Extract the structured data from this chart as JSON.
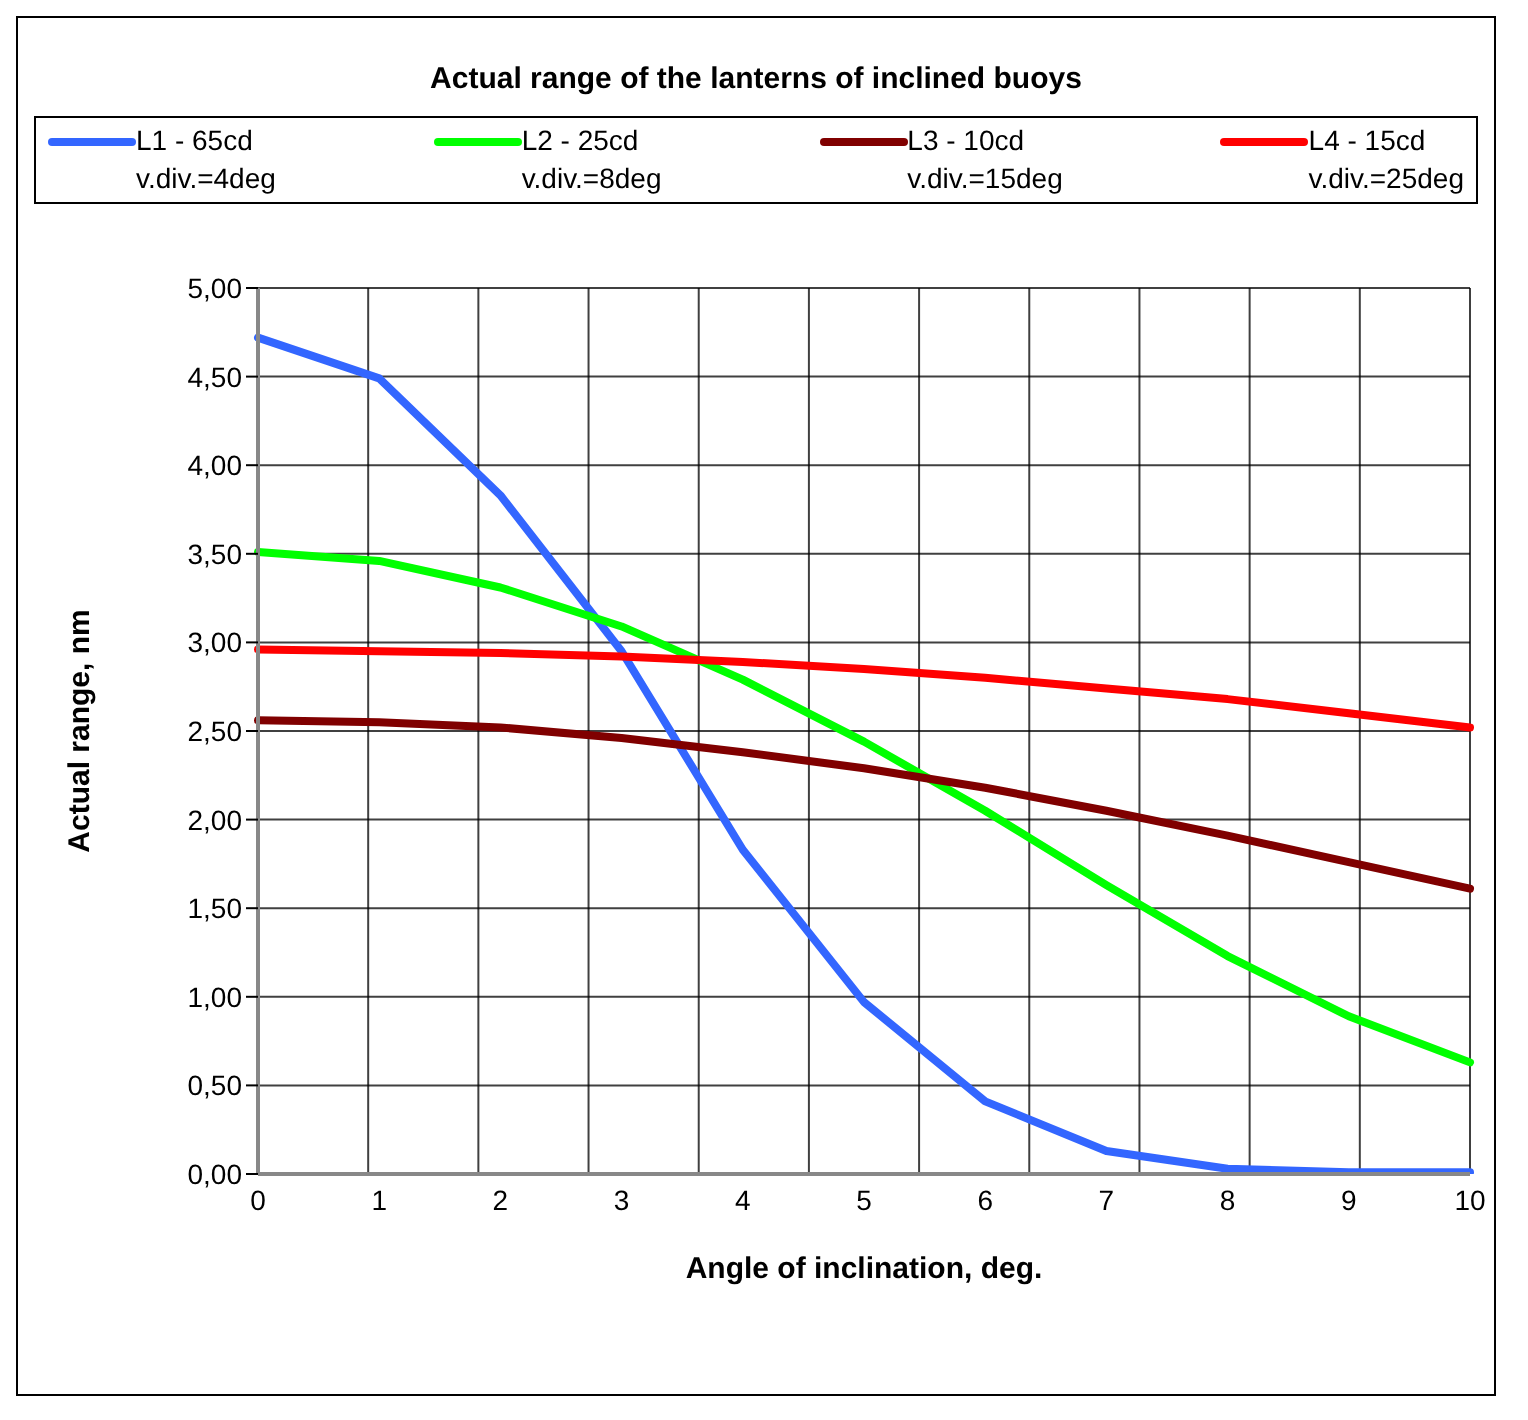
{
  "chart_data": {
    "type": "line",
    "title": "Actual range of the lanterns of inclined buoys",
    "xlabel": "Angle of inclination, deg.",
    "ylabel": "Actual range, nm",
    "categories": [
      "0",
      "1",
      "2",
      "3",
      "4",
      "5",
      "6",
      "7",
      "8",
      "9",
      "10"
    ],
    "series": [
      {
        "name": "L1 - 65cd\nv.div.=4deg",
        "color": "#3366ff",
        "values": [
          4.72,
          4.49,
          3.83,
          2.95,
          1.83,
          0.97,
          0.41,
          0.13,
          0.03,
          0.01,
          0.01
        ]
      },
      {
        "name": "L2 - 25cd\nv.div.=8deg",
        "color": "#00ff00",
        "values": [
          3.51,
          3.46,
          3.31,
          3.09,
          2.79,
          2.44,
          2.05,
          1.63,
          1.23,
          0.89,
          0.63
        ]
      },
      {
        "name": "L3 - 10cd\nv.div.=15deg",
        "color": "#800000",
        "values": [
          2.56,
          2.55,
          2.52,
          2.46,
          2.38,
          2.29,
          2.18,
          2.05,
          1.91,
          1.76,
          1.61
        ]
      },
      {
        "name": "L4 - 15cd\nv.div.=25deg",
        "color": "#ff0000",
        "values": [
          2.96,
          2.95,
          2.94,
          2.92,
          2.89,
          2.85,
          2.8,
          2.74,
          2.68,
          2.6,
          2.52
        ]
      }
    ],
    "ylim": [
      0,
      5
    ],
    "yticks": [
      {
        "value": 0,
        "label": "0,00"
      },
      {
        "value": 0.5,
        "label": "0,50"
      },
      {
        "value": 1,
        "label": "1,00"
      },
      {
        "value": 1.5,
        "label": "1,50"
      },
      {
        "value": 2,
        "label": "2,00"
      },
      {
        "value": 2.5,
        "label": "2,50"
      },
      {
        "value": 3,
        "label": "3,00"
      },
      {
        "value": 3.5,
        "label": "3,50"
      },
      {
        "value": 4,
        "label": "4,00"
      },
      {
        "value": 4.5,
        "label": "4,50"
      },
      {
        "value": 5,
        "label": "5,00"
      }
    ],
    "grid": true,
    "legend": "top",
    "marker": "none",
    "line_style": "solid"
  }
}
